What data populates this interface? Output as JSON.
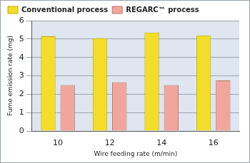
{
  "chart_data": {
    "type": "bar",
    "categories": [
      "10",
      "12",
      "14",
      "16"
    ],
    "series": [
      {
        "name": "Conventional process",
        "color": "#f3dd2a",
        "values": [
          5.15,
          5.05,
          5.35,
          5.2
        ]
      },
      {
        "name": "REGARC™ process",
        "color": "#f0a69c",
        "values": [
          2.5,
          2.65,
          2.5,
          2.75
        ]
      }
    ],
    "x_label": "Wire feeding rate (m/min)",
    "y_label": "Fume emission rate (mg)",
    "ylim": [
      0,
      6
    ],
    "yticks": [
      0,
      1,
      2,
      3,
      4,
      5,
      6
    ],
    "grid": true,
    "legend": "top-left"
  }
}
